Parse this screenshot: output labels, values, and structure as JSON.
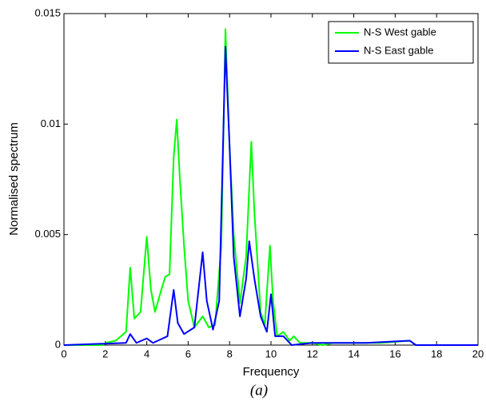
{
  "chart_data": {
    "type": "line",
    "xlabel": "Frequency",
    "ylabel": "Normalised spectrum",
    "caption": "(a)",
    "xlim": [
      0,
      20
    ],
    "xticks": [
      0,
      2,
      4,
      6,
      8,
      10,
      12,
      14,
      16,
      18,
      20
    ],
    "ylim": [
      0,
      0.015
    ],
    "yticks": [
      0,
      0.005,
      0.01,
      0.015
    ],
    "legend": "top-right",
    "series": [
      {
        "name": "N-S West gable",
        "color": "#00ff00",
        "x": [
          0,
          1.9,
          2,
          2.5,
          3.0,
          3.2,
          3.4,
          3.7,
          4.0,
          4.2,
          4.4,
          4.7,
          4.9,
          5.1,
          5.3,
          5.45,
          5.6,
          5.8,
          6.0,
          6.3,
          6.7,
          7.0,
          7.3,
          7.6,
          7.8,
          8.0,
          8.2,
          8.5,
          8.8,
          9.05,
          9.2,
          9.5,
          9.7,
          9.95,
          10.1,
          10.3,
          10.6,
          10.9,
          11.1,
          11.4,
          12,
          12.5,
          13,
          14,
          15.3,
          16.7,
          17,
          20
        ],
        "values": [
          0,
          0,
          0.0001,
          0.0002,
          0.0006,
          0.0035,
          0.0012,
          0.0015,
          0.0049,
          0.0025,
          0.0015,
          0.0025,
          0.0031,
          0.0032,
          0.0085,
          0.0102,
          0.0075,
          0.0045,
          0.002,
          0.0008,
          0.0013,
          0.0008,
          0.0009,
          0.0045,
          0.0143,
          0.009,
          0.005,
          0.0019,
          0.004,
          0.0092,
          0.006,
          0.0015,
          0.0009,
          0.0045,
          0.002,
          0.0004,
          0.0006,
          0.0002,
          0.0004,
          0.0001,
          0.0001,
          0,
          0.0001,
          0.0001,
          0.0001,
          0.0002,
          0,
          0
        ]
      },
      {
        "name": "N-S East gable",
        "color": "#0000ff",
        "x": [
          0,
          3.0,
          3.2,
          3.5,
          4.0,
          4.3,
          5.0,
          5.3,
          5.5,
          5.8,
          6.3,
          6.7,
          6.9,
          7.2,
          7.5,
          7.8,
          8.0,
          8.2,
          8.5,
          8.8,
          8.95,
          9.2,
          9.5,
          9.8,
          10.0,
          10.2,
          10.6,
          11,
          12,
          13.2,
          14.6,
          16.7,
          17,
          20
        ],
        "values": [
          0,
          0.0001,
          0.0005,
          0.0001,
          0.0003,
          0.0001,
          0.0004,
          0.0025,
          0.001,
          0.0005,
          0.0008,
          0.0042,
          0.002,
          0.0007,
          0.002,
          0.0135,
          0.009,
          0.004,
          0.0013,
          0.003,
          0.0047,
          0.003,
          0.0013,
          0.0006,
          0.0023,
          0.0004,
          0.0004,
          0,
          0.0001,
          0.0001,
          0.0001,
          0.0002,
          0,
          0
        ]
      }
    ]
  }
}
